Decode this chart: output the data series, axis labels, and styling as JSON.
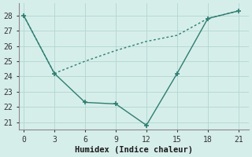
{
  "line_solid_x": [
    0,
    3,
    6,
    9,
    12,
    15,
    18,
    21
  ],
  "line_solid_y": [
    28,
    24.2,
    22.3,
    22.2,
    20.8,
    24.2,
    27.8,
    28.3
  ],
  "line_dotted_x": [
    0,
    3,
    6,
    9,
    12,
    15,
    18,
    21
  ],
  "line_dotted_y": [
    28,
    24.2,
    25.0,
    25.7,
    26.3,
    26.7,
    27.8,
    28.3
  ],
  "color": "#2e7d72",
  "bg_color": "#d6eeea",
  "xlabel": "Humidex (Indice chaleur)",
  "ylim": [
    20.5,
    28.8
  ],
  "xlim": [
    -0.5,
    22
  ],
  "xticks": [
    0,
    3,
    6,
    9,
    12,
    15,
    18,
    21
  ],
  "yticks": [
    21,
    22,
    23,
    24,
    25,
    26,
    27,
    28
  ],
  "grid_color": "#b5d9d4",
  "font_family": "monospace"
}
